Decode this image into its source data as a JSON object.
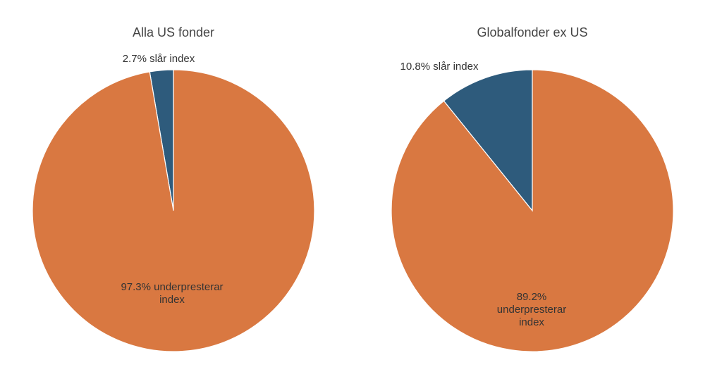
{
  "chart_data": [
    {
      "type": "pie",
      "title": "Alla US fonder",
      "slices": [
        {
          "label": "slår index",
          "value": 2.7,
          "color": "#2e5b7c",
          "text_lines": [
            "2.7% slår index"
          ]
        },
        {
          "label": "underpresterar index",
          "value": 97.3,
          "color": "#d97841",
          "text_lines": [
            "97.3% underpresterar",
            "index"
          ]
        }
      ]
    },
    {
      "type": "pie",
      "title": "Globalfonder ex US",
      "slices": [
        {
          "label": "slår index",
          "value": 10.8,
          "color": "#2e5b7c",
          "text_lines": [
            "10.8% slår index"
          ]
        },
        {
          "label": "underpresterar index",
          "value": 89.2,
          "color": "#d97841",
          "text_lines": [
            "89.2%",
            "underpresterar",
            "index"
          ]
        }
      ]
    }
  ]
}
